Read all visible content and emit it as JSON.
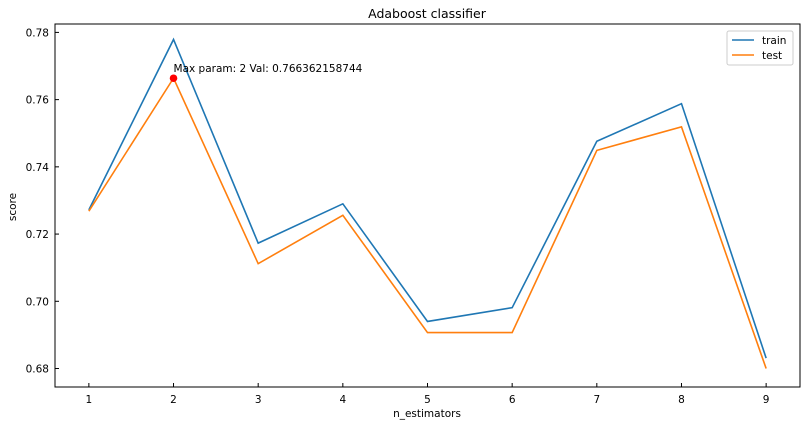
{
  "chart_data": {
    "type": "line",
    "title": "Adaboost classifier",
    "xlabel": "n_estimators",
    "ylabel": "score",
    "x": [
      1,
      2,
      3,
      4,
      5,
      6,
      7,
      8,
      9
    ],
    "xlim": [
      0.6,
      9.4
    ],
    "ylim": [
      0.6745,
      0.7825
    ],
    "xticks": [
      1,
      2,
      3,
      4,
      5,
      6,
      7,
      8,
      9
    ],
    "yticks": [
      0.68,
      0.7,
      0.72,
      0.74,
      0.76,
      0.78
    ],
    "ytick_labels": [
      "0.68",
      "0.70",
      "0.72",
      "0.74",
      "0.76",
      "0.78"
    ],
    "grid": false,
    "legend_position": "top-right",
    "series": [
      {
        "name": "train",
        "color": "#1f77b4",
        "values": [
          0.7272,
          0.7779,
          0.7173,
          0.729,
          0.694,
          0.6981,
          0.7476,
          0.7588,
          0.6831
        ]
      },
      {
        "name": "test",
        "color": "#ff7f0e",
        "values": [
          0.7268,
          0.7664,
          0.7112,
          0.7256,
          0.6907,
          0.6907,
          0.7449,
          0.7519,
          0.68
        ]
      }
    ],
    "annotation": {
      "text": "Max param: 2 Val: 0.766362158744",
      "x": 2,
      "y": 0.766362158744,
      "marker_color": "#ff0000"
    }
  }
}
